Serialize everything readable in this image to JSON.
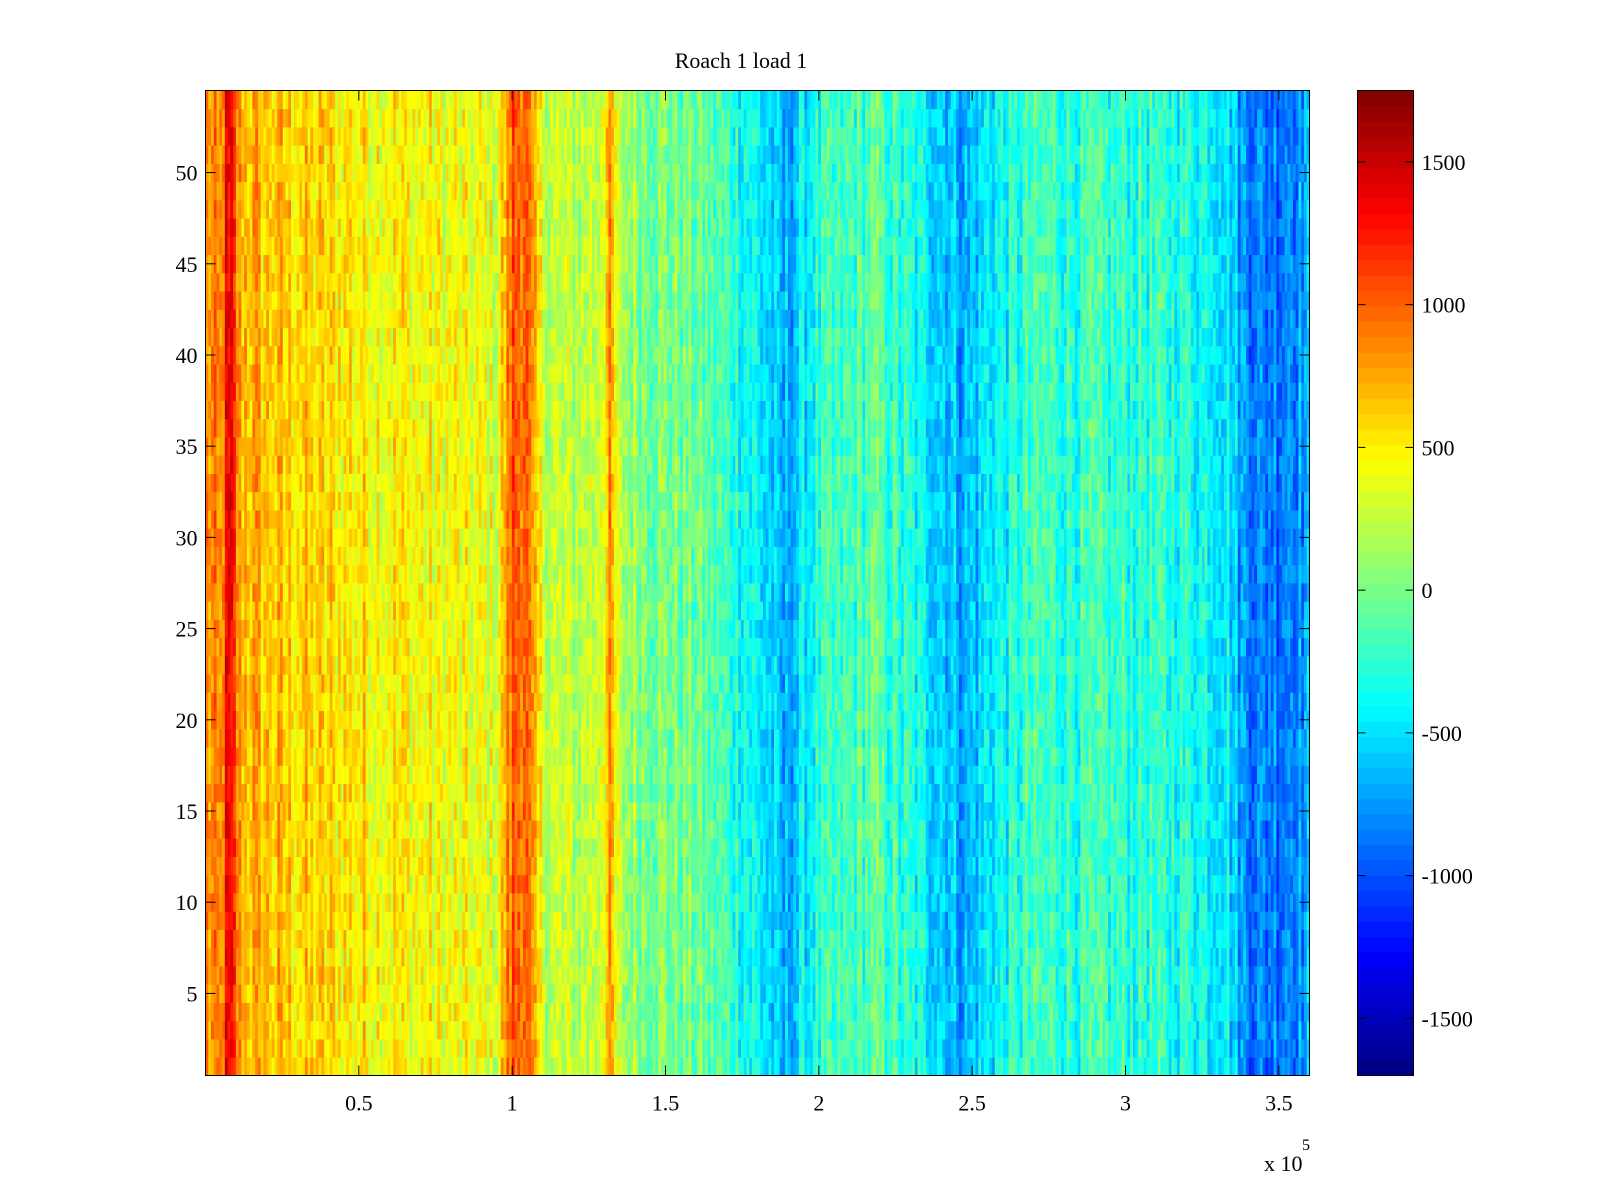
{
  "chart_data": {
    "type": "heatmap",
    "title": "Roach 1 load 1",
    "xlabel": "",
    "ylabel": "",
    "x_multiplier_label": {
      "base": "x 10",
      "exponent": "5"
    },
    "xlim": [
      0,
      360000
    ],
    "ylim": [
      0.5,
      54.5
    ],
    "x_ticks": [
      {
        "value": 50000,
        "label": "0.5"
      },
      {
        "value": 100000,
        "label": "1"
      },
      {
        "value": 150000,
        "label": "1.5"
      },
      {
        "value": 200000,
        "label": "2"
      },
      {
        "value": 250000,
        "label": "2.5"
      },
      {
        "value": 300000,
        "label": "3"
      },
      {
        "value": 350000,
        "label": "3.5"
      }
    ],
    "y_ticks": [
      {
        "value": 5,
        "label": "5"
      },
      {
        "value": 10,
        "label": "10"
      },
      {
        "value": 15,
        "label": "15"
      },
      {
        "value": 20,
        "label": "20"
      },
      {
        "value": 25,
        "label": "25"
      },
      {
        "value": 30,
        "label": "30"
      },
      {
        "value": 35,
        "label": "35"
      },
      {
        "value": 40,
        "label": "40"
      },
      {
        "value": 45,
        "label": "45"
      },
      {
        "value": 50,
        "label": "50"
      }
    ],
    "colormap": "jet",
    "clim": [
      -1700,
      1750
    ],
    "colorbar_ticks": [
      {
        "value": 1500,
        "label": "1500"
      },
      {
        "value": 1000,
        "label": "1000"
      },
      {
        "value": 500,
        "label": "500"
      },
      {
        "value": 0,
        "label": "0"
      },
      {
        "value": -500,
        "label": "-500"
      },
      {
        "value": -1000,
        "label": "-1000"
      },
      {
        "value": -1500,
        "label": "-1500"
      }
    ],
    "rows": 54,
    "column_profile": {
      "x": [
        0,
        5000,
        7000,
        9000,
        11000,
        20000,
        40000,
        60000,
        80000,
        95000,
        100000,
        104000,
        108000,
        112000,
        120000,
        128000,
        132000,
        135000,
        145000,
        160000,
        175000,
        183000,
        188000,
        192000,
        198000,
        210000,
        218000,
        230000,
        240000,
        248000,
        255000,
        268000,
        272000,
        285000,
        300000,
        320000,
        333000,
        338000,
        345000,
        355000,
        360000
      ],
      "value": [
        850,
        750,
        1300,
        1200,
        750,
        650,
        550,
        500,
        400,
        350,
        1000,
        1050,
        500,
        250,
        200,
        300,
        750,
        150,
        50,
        -50,
        -300,
        -500,
        -750,
        -600,
        -350,
        -200,
        -100,
        -350,
        -500,
        -700,
        -450,
        -250,
        -200,
        -250,
        -250,
        -300,
        -400,
        -750,
        -850,
        -750,
        -700
      ]
    },
    "noise_amplitude": 380,
    "grid": false
  }
}
